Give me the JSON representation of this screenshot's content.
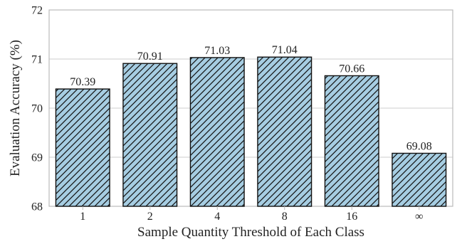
{
  "chart_data": {
    "type": "bar",
    "categories": [
      "1",
      "2",
      "4",
      "8",
      "16",
      "∞"
    ],
    "values": [
      70.39,
      70.91,
      71.03,
      71.04,
      70.66,
      69.08
    ],
    "data_labels": [
      "70.39",
      "70.91",
      "71.03",
      "71.04",
      "70.66",
      "69.08"
    ],
    "title": "",
    "xlabel": "Sample Quantity Threshold of Each Class",
    "ylabel": "Evaluation Accuracy (%)",
    "ylim": [
      68,
      72
    ],
    "yticks": [
      68,
      69,
      70,
      71,
      72
    ],
    "grid": "horizontal",
    "legend": "none",
    "bar_fill": "#a6cde2",
    "bar_hatch": "diagonal",
    "bar_edge": "#111111",
    "grid_color": "#cccccc",
    "axis_color": "#bbbbbb"
  }
}
